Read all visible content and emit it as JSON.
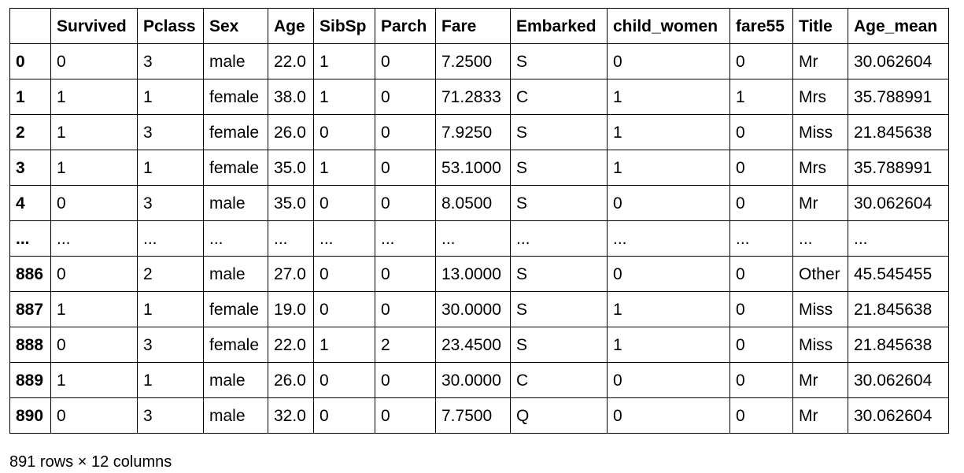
{
  "dataframe": {
    "index_header": "",
    "columns": [
      "Survived",
      "Pclass",
      "Sex",
      "Age",
      "SibSp",
      "Parch",
      "Fare",
      "Embarked",
      "child_women",
      "fare55",
      "Title",
      "Age_mean"
    ],
    "rows": [
      {
        "index": "0",
        "cells": [
          "0",
          "3",
          "male",
          "22.0",
          "1",
          "0",
          "7.2500",
          "S",
          "0",
          "0",
          "Mr",
          "30.062604"
        ]
      },
      {
        "index": "1",
        "cells": [
          "1",
          "1",
          "female",
          "38.0",
          "1",
          "0",
          "71.2833",
          "C",
          "1",
          "1",
          "Mrs",
          "35.788991"
        ]
      },
      {
        "index": "2",
        "cells": [
          "1",
          "3",
          "female",
          "26.0",
          "0",
          "0",
          "7.9250",
          "S",
          "1",
          "0",
          "Miss",
          "21.845638"
        ]
      },
      {
        "index": "3",
        "cells": [
          "1",
          "1",
          "female",
          "35.0",
          "1",
          "0",
          "53.1000",
          "S",
          "1",
          "0",
          "Mrs",
          "35.788991"
        ]
      },
      {
        "index": "4",
        "cells": [
          "0",
          "3",
          "male",
          "35.0",
          "0",
          "0",
          "8.0500",
          "S",
          "0",
          "0",
          "Mr",
          "30.062604"
        ]
      },
      {
        "index": "...",
        "cells": [
          "...",
          "...",
          "...",
          "...",
          "...",
          "...",
          "...",
          "...",
          "...",
          "...",
          "...",
          "..."
        ]
      },
      {
        "index": "886",
        "cells": [
          "0",
          "2",
          "male",
          "27.0",
          "0",
          "0",
          "13.0000",
          "S",
          "0",
          "0",
          "Other",
          "45.545455"
        ]
      },
      {
        "index": "887",
        "cells": [
          "1",
          "1",
          "female",
          "19.0",
          "0",
          "0",
          "30.0000",
          "S",
          "1",
          "0",
          "Miss",
          "21.845638"
        ]
      },
      {
        "index": "888",
        "cells": [
          "0",
          "3",
          "female",
          "22.0",
          "1",
          "2",
          "23.4500",
          "S",
          "1",
          "0",
          "Miss",
          "21.845638"
        ]
      },
      {
        "index": "889",
        "cells": [
          "1",
          "1",
          "male",
          "26.0",
          "0",
          "0",
          "30.0000",
          "C",
          "0",
          "0",
          "Mr",
          "30.062604"
        ]
      },
      {
        "index": "890",
        "cells": [
          "0",
          "3",
          "male",
          "32.0",
          "0",
          "0",
          "7.7500",
          "Q",
          "0",
          "0",
          "Mr",
          "30.062604"
        ]
      }
    ],
    "summary": "891 rows × 12 columns"
  },
  "colors": {
    "border": "#000000",
    "background": "#ffffff",
    "text": "#000000"
  }
}
